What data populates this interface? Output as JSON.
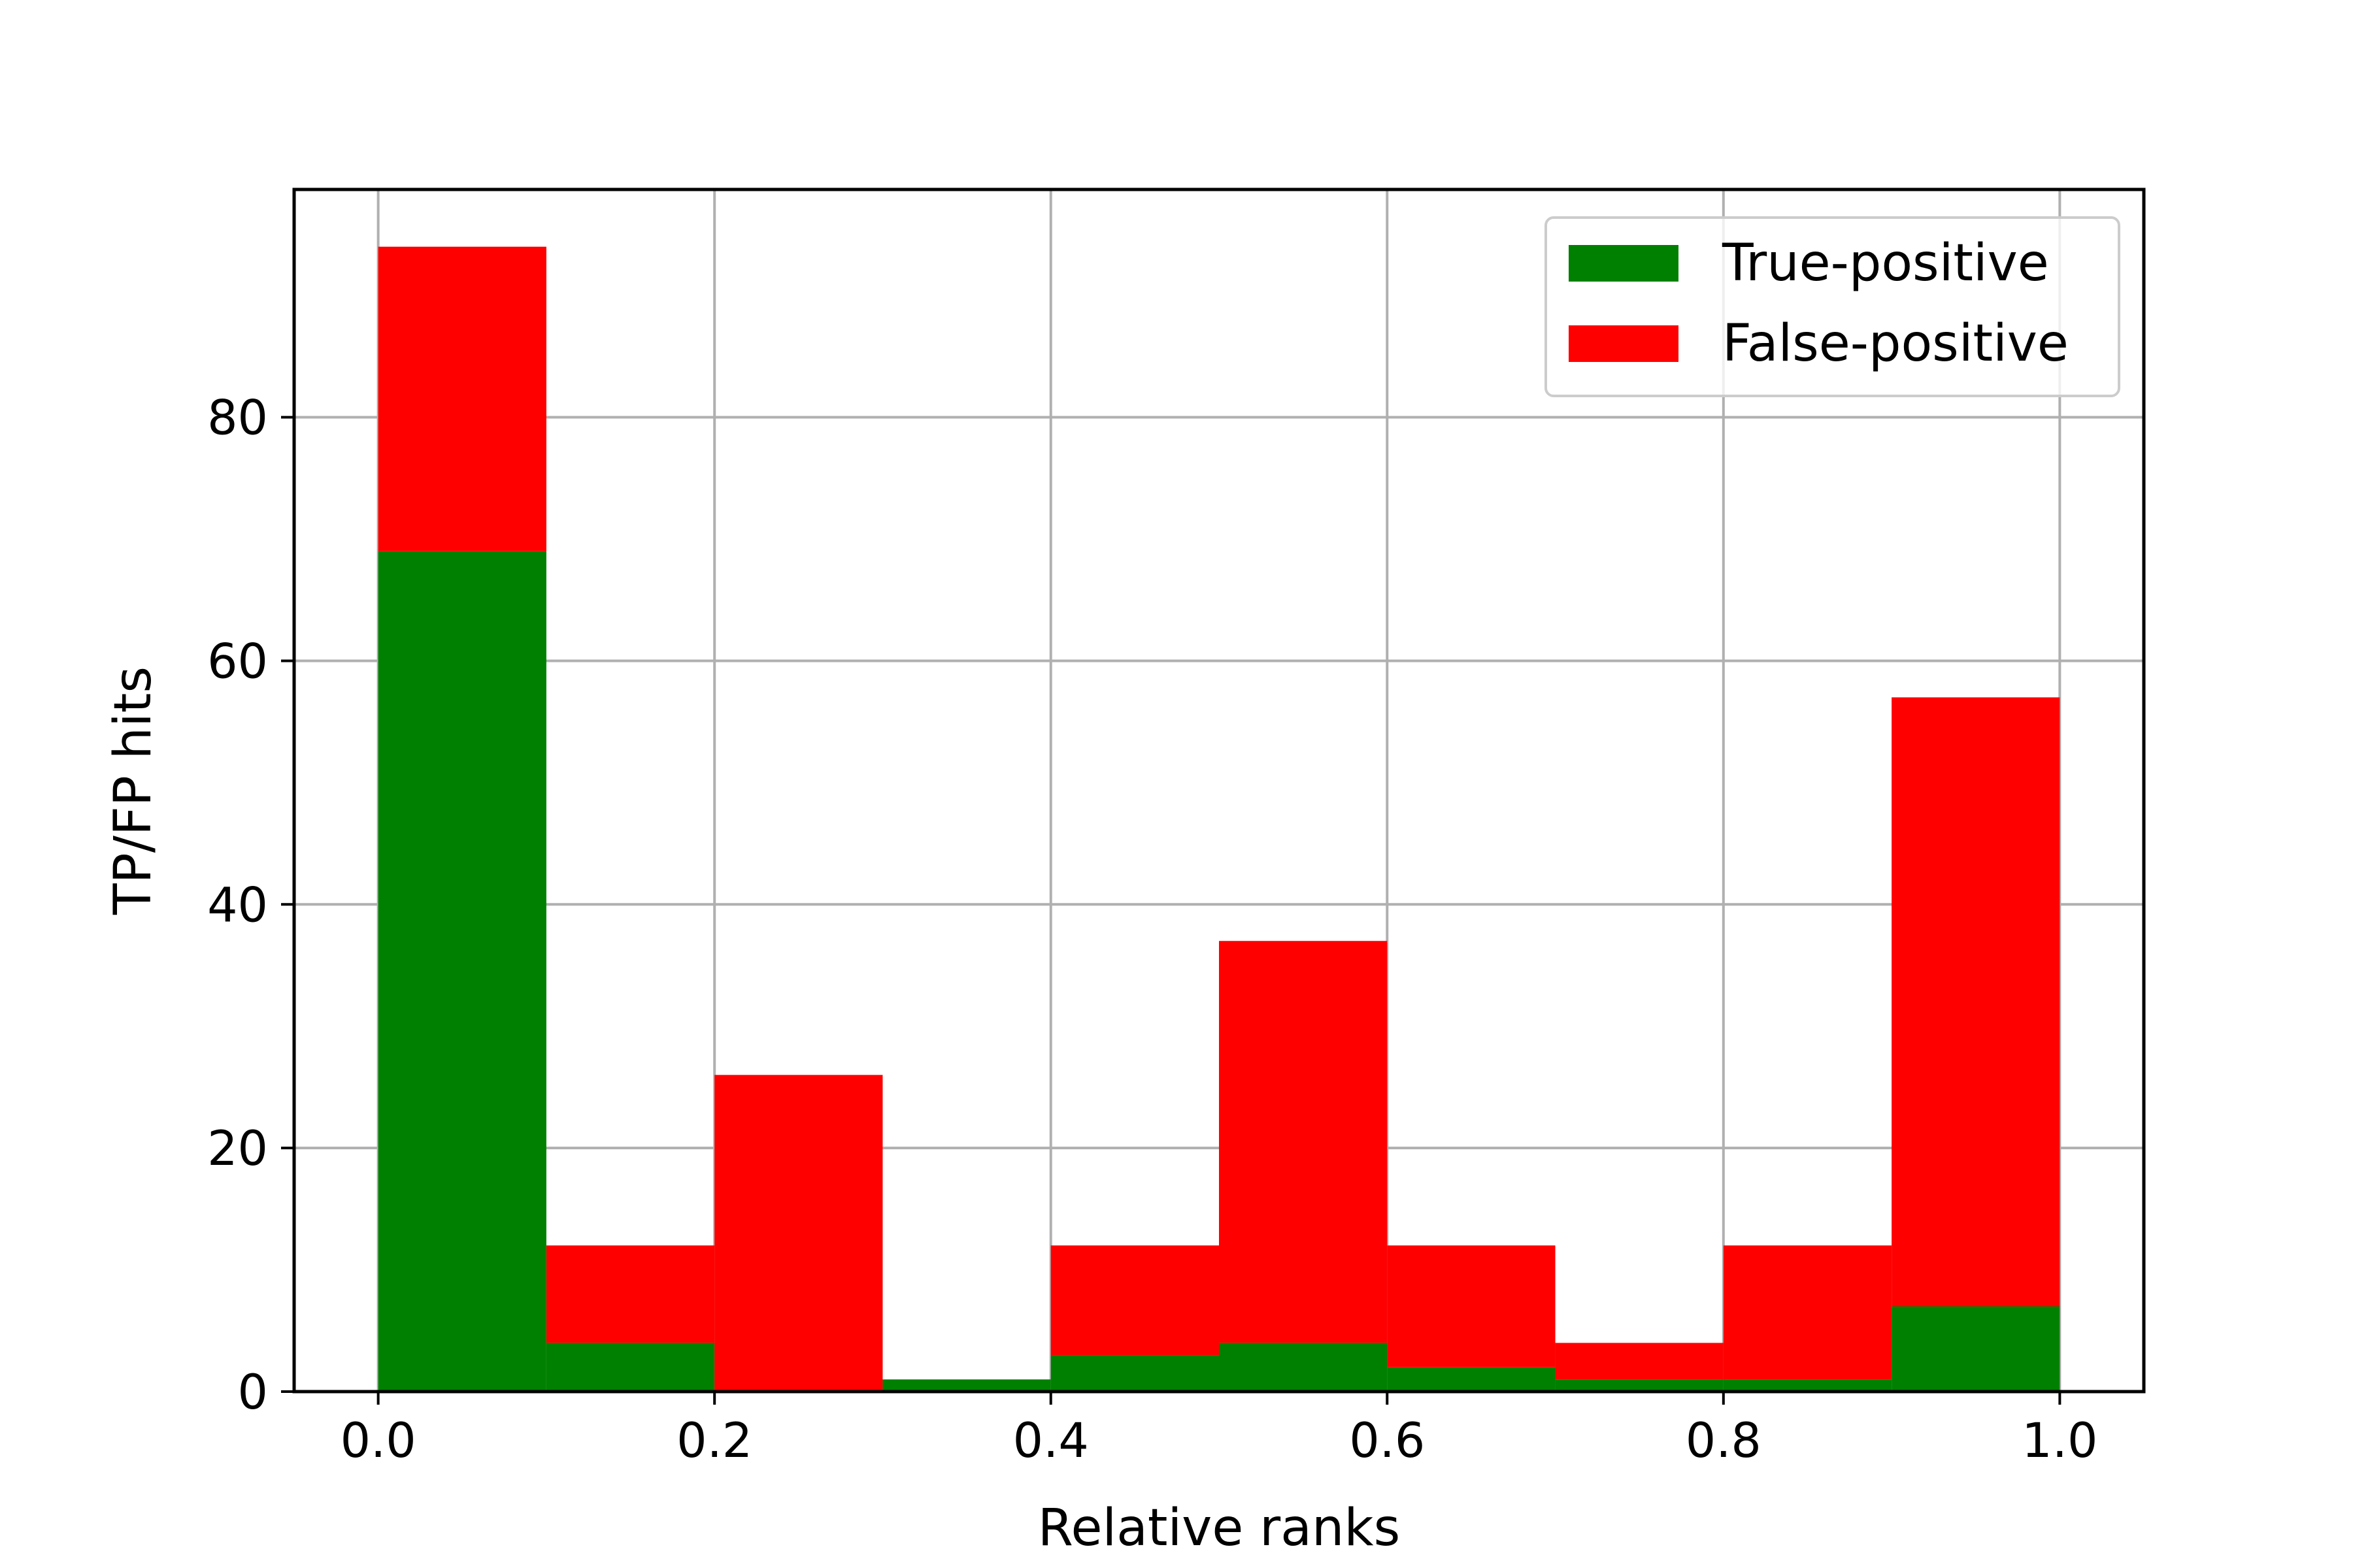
{
  "chart_data": {
    "type": "bar",
    "stacked": true,
    "bin_edges": [
      0.0,
      0.1,
      0.2,
      0.3,
      0.4,
      0.5,
      0.6,
      0.7,
      0.8,
      0.9,
      1.0
    ],
    "series": [
      {
        "name": "True-positive",
        "color": "#008000",
        "values": [
          69,
          4,
          0,
          1,
          3,
          4,
          2,
          1,
          1,
          7
        ]
      },
      {
        "name": "False-positive",
        "color": "#ff0000",
        "values": [
          25,
          8,
          26,
          0,
          9,
          33,
          10,
          3,
          11,
          50
        ]
      }
    ],
    "xlabel": "Relative ranks",
    "ylabel": "TP/FP hits",
    "xlim": [
      -0.05,
      1.05
    ],
    "ylim": [
      0,
      98.7
    ],
    "xticks": [
      "0.0",
      "0.2",
      "0.4",
      "0.6",
      "0.8",
      "1.0"
    ],
    "yticks": [
      "0",
      "20",
      "40",
      "60",
      "80"
    ],
    "grid": true,
    "legend": "top-right"
  }
}
